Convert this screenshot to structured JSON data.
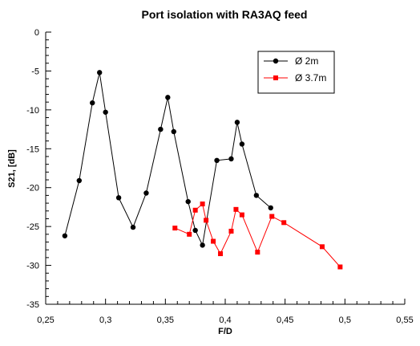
{
  "chart_data": {
    "type": "line",
    "title": "Port isolation with RA3AQ feed",
    "xlabel": "F/D",
    "ylabel": "S21, [dB]",
    "xlim": [
      0.25,
      0.55
    ],
    "ylim": [
      -35,
      0
    ],
    "x_ticks": [
      "0,25",
      "0,3",
      "0,35",
      "0,4",
      "0,45",
      "0,5",
      "0,55"
    ],
    "y_ticks": [
      "0",
      "-5",
      "-10",
      "-15",
      "-20",
      "-25",
      "-30",
      "-35"
    ],
    "grid": false,
    "legend_position": "top-right",
    "series": [
      {
        "name": "Ø 2m",
        "color": "#000000",
        "marker": "circle",
        "x": [
          0.266,
          0.278,
          0.289,
          0.295,
          0.3,
          0.311,
          0.323,
          0.334,
          0.346,
          0.352,
          0.357,
          0.369,
          0.375,
          0.381,
          0.393,
          0.405,
          0.41,
          0.414,
          0.426,
          0.438
        ],
        "y": [
          -26.2,
          -19.1,
          -9.1,
          -5.2,
          -10.3,
          -21.3,
          -25.1,
          -20.7,
          -12.5,
          -8.4,
          -12.8,
          -21.8,
          -25.5,
          -27.4,
          -16.5,
          -16.3,
          -11.6,
          -14.4,
          -21.0,
          -22.6
        ]
      },
      {
        "name": "Ø 3.7m",
        "color": "#ff0000",
        "marker": "square",
        "x": [
          0.358,
          0.37,
          0.375,
          0.381,
          0.384,
          0.39,
          0.396,
          0.405,
          0.409,
          0.414,
          0.427,
          0.439,
          0.449,
          0.481,
          0.496
        ],
        "y": [
          -25.2,
          -26.0,
          -22.9,
          -22.1,
          -24.2,
          -26.9,
          -28.5,
          -25.6,
          -22.8,
          -23.5,
          -28.3,
          -23.7,
          -24.5,
          -27.6,
          -30.2
        ]
      }
    ]
  }
}
